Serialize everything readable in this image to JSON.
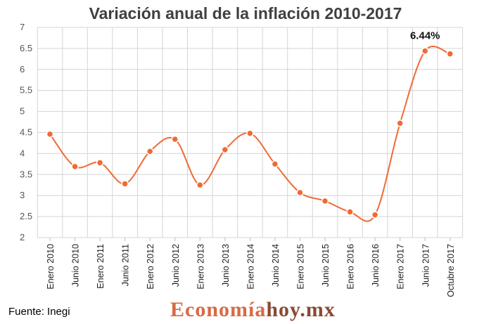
{
  "chart_data": {
    "type": "line",
    "title": "Variación anual de la inflación 2010-2017",
    "xlabel": "",
    "ylabel": "",
    "categories": [
      "Enero 2010",
      "Junio 2010",
      "Enero 2011",
      "Junio 2011",
      "Enero 2012",
      "Junio 2012",
      "Enero 2013",
      "Junio 2013",
      "Enero 2014",
      "Junio 2014",
      "Enero 2015",
      "Junio 2015",
      "Enero 2016",
      "Junio 2016",
      "Enero 2017",
      "Junio 2017",
      "Octubre 2017"
    ],
    "series": [
      {
        "values": [
          4.46,
          3.69,
          3.78,
          3.28,
          4.05,
          4.34,
          3.25,
          4.09,
          4.48,
          3.75,
          3.07,
          2.87,
          2.61,
          2.54,
          4.72,
          6.44,
          6.37
        ]
      }
    ],
    "ylim": [
      2,
      7
    ],
    "yticks": [
      2,
      2.5,
      3,
      3.5,
      4,
      4.5,
      5,
      5.5,
      6,
      6.5,
      7
    ],
    "grid": true,
    "color": "#f06a35",
    "annotation": {
      "index": 15,
      "text": "6.44%"
    }
  },
  "footer": {
    "source": "Fuente: Inegi",
    "brand_part1": "Economía",
    "brand_part2": "hoy.mx"
  }
}
